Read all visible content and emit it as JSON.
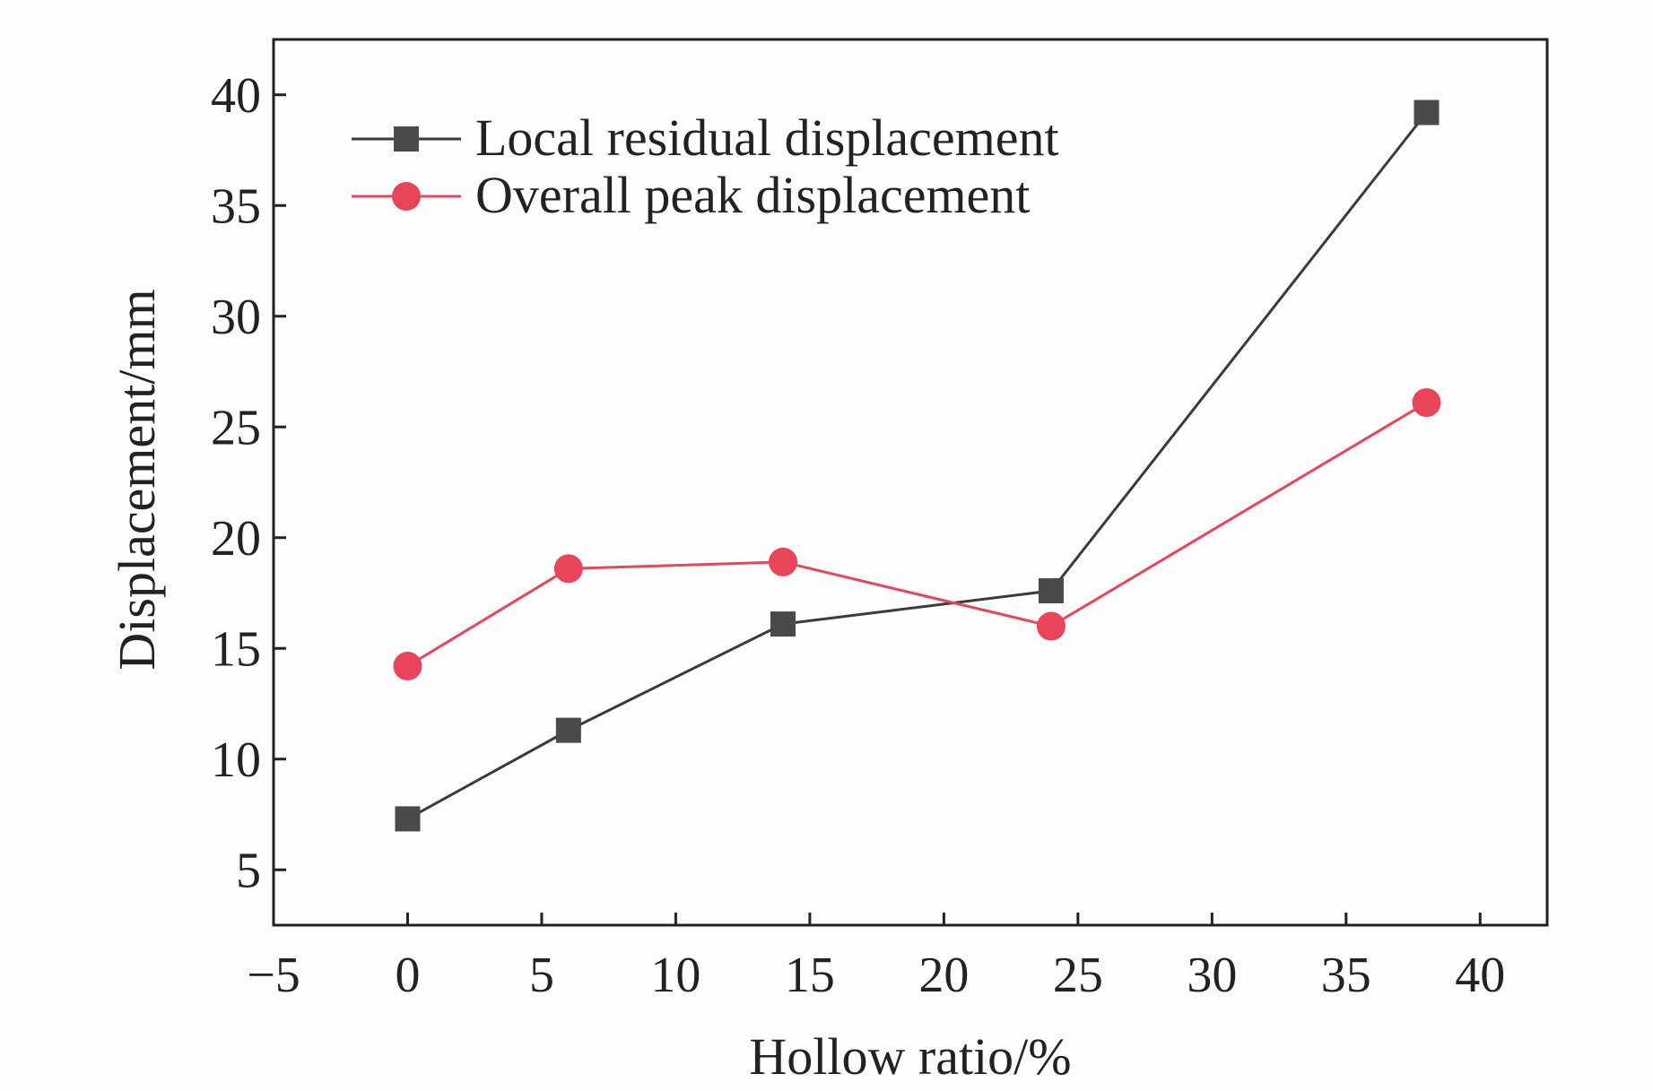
{
  "chart_data": {
    "type": "line",
    "title": "",
    "xlabel": "Hollow ratio/%",
    "ylabel": "Displacement/mm",
    "xlim": [
      -5,
      42.5
    ],
    "ylim": [
      2.5,
      42.5
    ],
    "xticks": [
      -5,
      0,
      5,
      10,
      15,
      20,
      25,
      30,
      35,
      40
    ],
    "xtick_labels": [
      "−5",
      "0",
      "5",
      "10",
      "15",
      "20",
      "25",
      "30",
      "35",
      "40"
    ],
    "yticks": [
      5,
      10,
      15,
      20,
      25,
      30,
      35,
      40
    ],
    "ytick_labels": [
      "5",
      "10",
      "15",
      "20",
      "25",
      "30",
      "35",
      "40"
    ],
    "grid": false,
    "legend_position": "top-left",
    "series": [
      {
        "name": "Local residual displacement",
        "marker": "square",
        "color": "#3a3a3a",
        "marker_color": "#4a4a4a",
        "x": [
          0,
          6,
          14,
          24,
          38
        ],
        "y": [
          7.3,
          11.3,
          16.1,
          17.6,
          39.2
        ]
      },
      {
        "name": "Overall peak displacement",
        "marker": "circle",
        "color": "#e8445a",
        "marker_color": "#e8445a",
        "x": [
          0,
          6,
          14,
          24,
          38
        ],
        "y": [
          14.2,
          18.6,
          18.9,
          16.0,
          26.1
        ]
      }
    ]
  }
}
